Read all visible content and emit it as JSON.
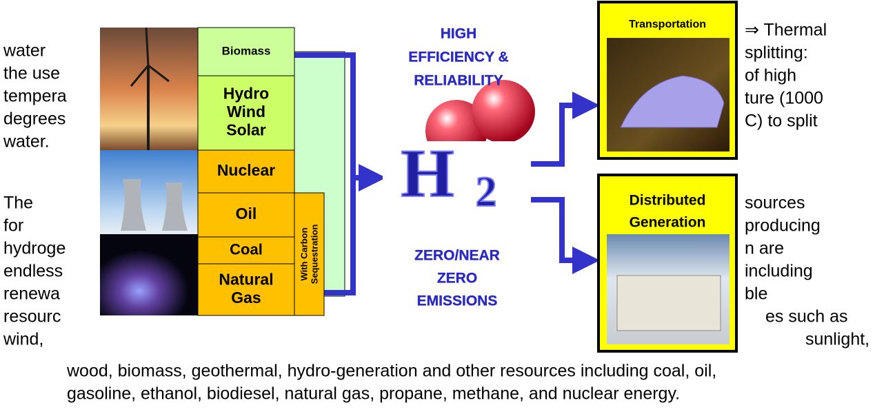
{
  "left_text": [
    "water",
    "the use",
    "tempera",
    "degrees",
    "water.",
    "The",
    "for",
    "hydroge",
    "endless",
    "renewa",
    "resourc",
    "wind,"
  ],
  "right_text": [
    "⇒ Thermal",
    "splitting:",
    "of high",
    "ture (1000",
    "C) to split",
    "sources",
    "producing",
    "n are",
    "including",
    "ble",
    "es such as",
    "sunlight,"
  ],
  "bottom_text": [
    "wood, biomass, geothermal, hydro-generation and other resources including coal, oil,",
    "gasoline, ethanol, biodiesel, natural gas, propane, methane, and nuclear energy."
  ],
  "sources": [
    {
      "lines": [
        "Biomass"
      ]
    },
    {
      "lines": [
        "Hydro",
        "Wind",
        "Solar"
      ]
    },
    {
      "lines": [
        "Nuclear"
      ]
    },
    {
      "lines": [
        "Oil"
      ]
    },
    {
      "lines": [
        "Coal"
      ]
    },
    {
      "lines": [
        "Natural",
        "Gas"
      ]
    }
  ],
  "sequestration": [
    "With Carbon",
    "Sequestration"
  ],
  "center_top": [
    "HIGH",
    "EFFICIENCY &",
    "RELIABILITY"
  ],
  "center_bottom": [
    "ZERO/NEAR",
    "ZERO",
    "EMISSIONS"
  ],
  "uses": [
    {
      "lines": [
        "Transportation"
      ]
    },
    {
      "lines": [
        "Distributed",
        "Generation"
      ]
    }
  ]
}
